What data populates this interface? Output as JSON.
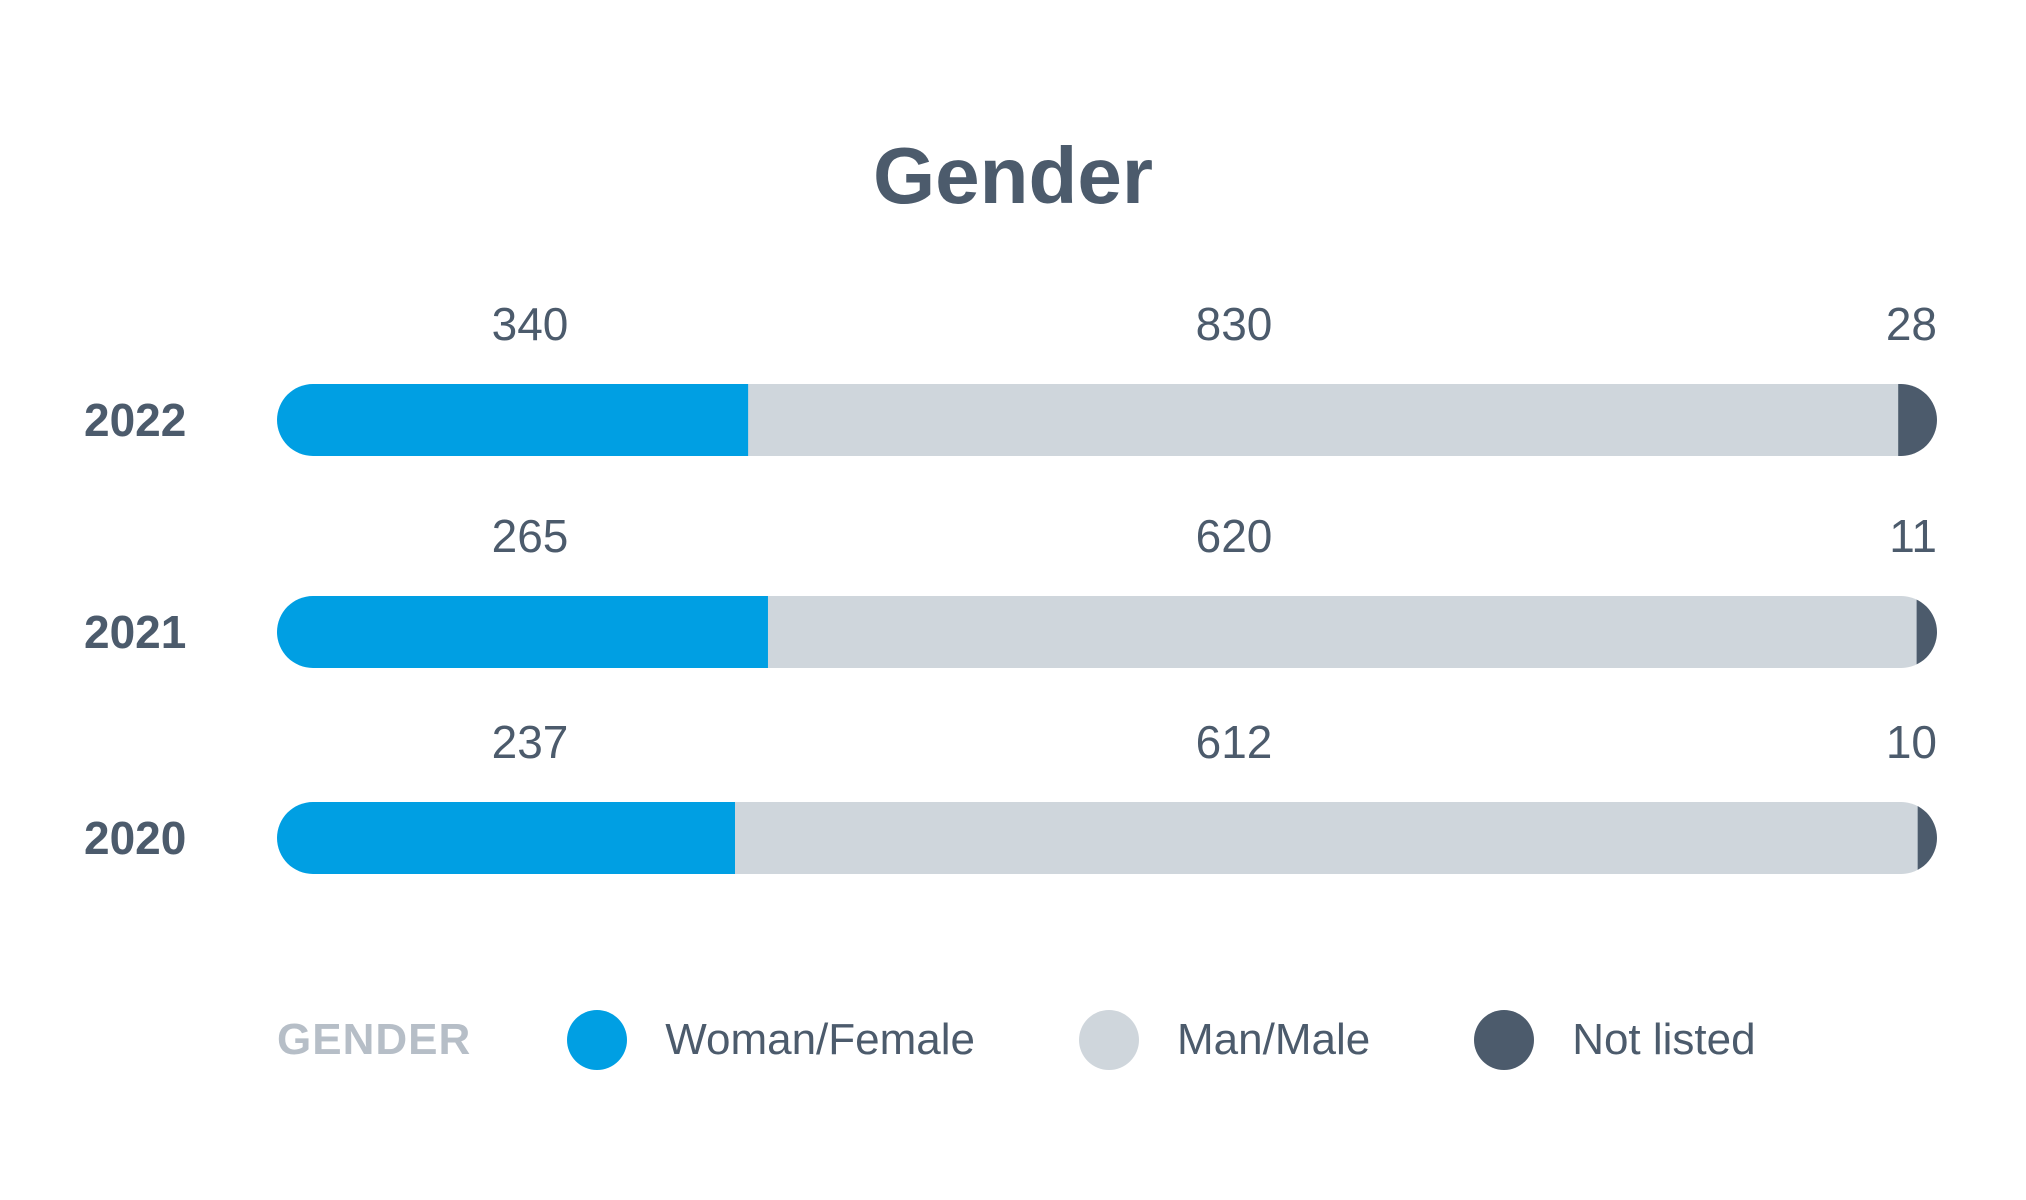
{
  "chart_data": {
    "type": "bar",
    "orientation": "horizontal",
    "stacked": true,
    "title": "Gender",
    "categories": [
      "2022",
      "2021",
      "2020"
    ],
    "series": [
      {
        "name": "Woman/Female",
        "color": "#009fe3",
        "values": [
          340,
          265,
          237
        ]
      },
      {
        "name": "Man/Male",
        "color": "#cfd6dc",
        "values": [
          830,
          620,
          612
        ]
      },
      {
        "name": "Not listed",
        "color": "#4c5b6c",
        "values": [
          28,
          11,
          10
        ]
      }
    ],
    "legend": {
      "title": "GENDER",
      "placement": "bottom"
    },
    "grid": false,
    "data_labels": "above"
  }
}
